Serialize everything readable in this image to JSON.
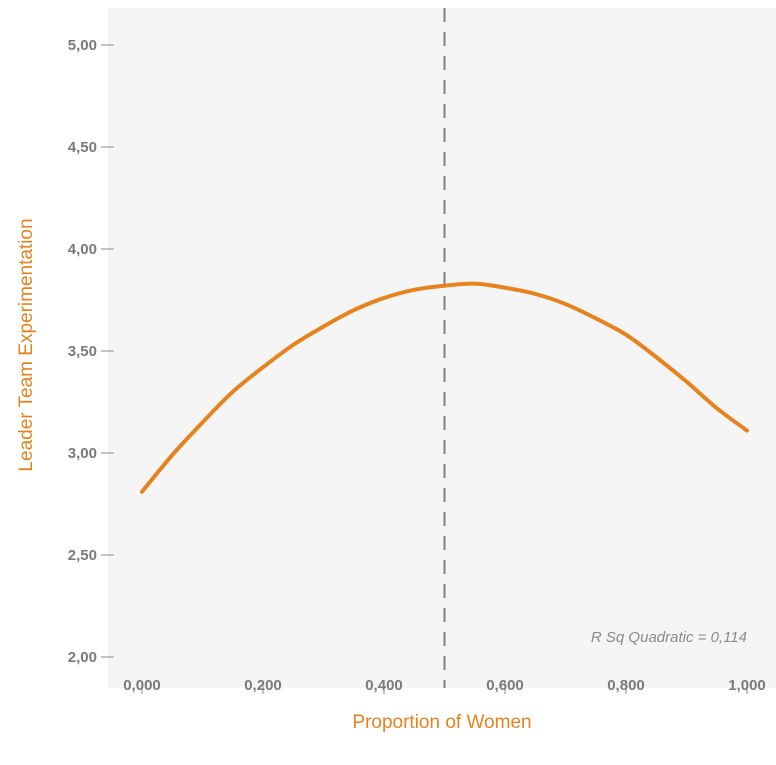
{
  "chart_data": {
    "type": "line",
    "xlabel": "Proportion of Women",
    "ylabel": "Leader Team Experimentation",
    "xlim": [
      0,
      1
    ],
    "ylim": [
      2.0,
      5.0
    ],
    "x_ticks": [
      "0,000",
      "0,200",
      "0,400",
      "0,600",
      "0,800",
      "1,000"
    ],
    "y_ticks": [
      "2,00",
      "2,50",
      "3,00",
      "3,50",
      "4,00",
      "4,50",
      "5,00"
    ],
    "x_tick_values": [
      0,
      0.2,
      0.4,
      0.6,
      0.8,
      1.0
    ],
    "y_tick_values": [
      2.0,
      2.5,
      3.0,
      3.5,
      4.0,
      4.5,
      5.0
    ],
    "reference_line": {
      "x": 0.5,
      "style": "dashed"
    },
    "annotation": "R Sq Quadratic = 0,114",
    "series": [
      {
        "x": [
          0.0,
          0.05,
          0.1,
          0.15,
          0.2,
          0.25,
          0.3,
          0.35,
          0.4,
          0.45,
          0.5,
          0.55,
          0.6,
          0.65,
          0.7,
          0.75,
          0.8,
          0.85,
          0.9,
          0.95,
          1.0
        ],
        "y": [
          2.81,
          2.99,
          3.15,
          3.3,
          3.42,
          3.53,
          3.62,
          3.7,
          3.76,
          3.8,
          3.82,
          3.83,
          3.81,
          3.78,
          3.73,
          3.66,
          3.58,
          3.47,
          3.35,
          3.22,
          3.11
        ]
      }
    ],
    "grid": false,
    "colors": {
      "line": "#e8821e",
      "axis_title": "#e8821e",
      "plot_background": "#f5f5f5",
      "reference_line": "#7f7f7f"
    }
  }
}
